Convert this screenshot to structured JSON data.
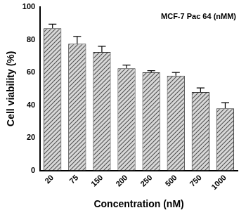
{
  "chart_data": {
    "type": "bar",
    "title": "MCF-7 Pac 64 (nMM)",
    "x_label": "Concentration (nM)",
    "y_label": "Cell viability (%)",
    "categories": [
      "20",
      "75",
      "150",
      "200",
      "250",
      "500",
      "750",
      "1000"
    ],
    "values": [
      87,
      77.5,
      72.5,
      62.5,
      60,
      58,
      48,
      38
    ],
    "errors": [
      2.5,
      4.5,
      3.5,
      2,
      1,
      2,
      2.5,
      3.5
    ],
    "color": "#555555",
    "ylim": [
      0,
      100
    ],
    "yticks": [
      0,
      20,
      40,
      60,
      80,
      100
    ],
    "grid": false
  }
}
